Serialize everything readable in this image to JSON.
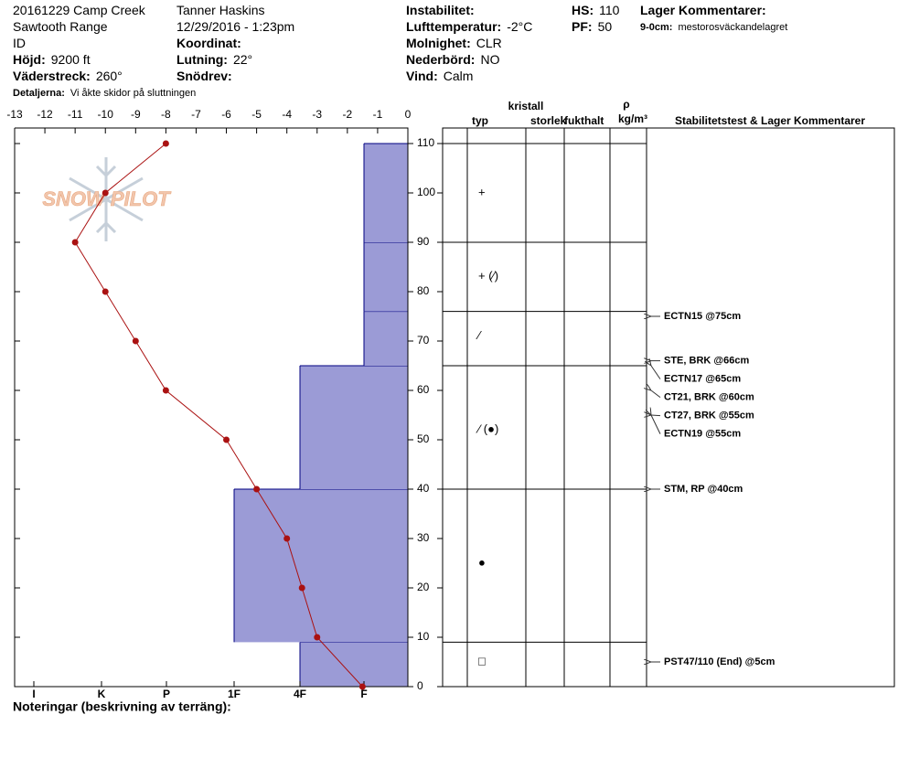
{
  "header": {
    "columns": [
      [
        {
          "value": "20161229 Camp Creek"
        },
        {
          "value": "Sawtooth Range"
        },
        {
          "value": "ID"
        },
        {
          "label": "Höjd:",
          "value": "9200 ft"
        },
        {
          "label": "Väderstreck:",
          "value": "260°"
        },
        {
          "label": "Detaljerna:",
          "value": "Vi åkte skidor på sluttningen"
        }
      ],
      [
        {
          "value": "Tanner Haskins"
        },
        {
          "value": "12/29/2016 - 1:23pm"
        },
        {
          "label": "Koordinat:"
        },
        {
          "label": "Lutning:",
          "value": "22°"
        },
        {
          "label": "Snödrev:"
        }
      ],
      [
        {
          "label": "Instabilitet:"
        },
        {
          "label": "Lufttemperatur:",
          "value": "-2°C"
        },
        {
          "label": "Molnighet:",
          "value": "CLR"
        },
        {
          "label": "Nederbörd:",
          "value": "NO"
        },
        {
          "label": "Vind:",
          "value": "Calm"
        }
      ],
      [
        {
          "label": "HS:",
          "value": "110"
        },
        {
          "label": "PF:",
          "value": "50"
        }
      ],
      [
        {
          "label": "Lager Kommentarer:"
        },
        {
          "label": "9-0cm:",
          "value": "mestorosväckandelagret"
        }
      ]
    ]
  },
  "chart_data": {
    "type": "snow-profile",
    "logo": "SNOW PILOT",
    "xlim": [
      -13,
      0
    ],
    "xticks": [
      -13,
      -12,
      -11,
      -10,
      -9,
      -8,
      -7,
      -6,
      -5,
      -4,
      -3,
      -2,
      -1,
      0
    ],
    "ylim": [
      0,
      110
    ],
    "yticks": [
      0,
      10,
      20,
      30,
      40,
      50,
      60,
      70,
      80,
      90,
      100,
      110
    ],
    "hardness_categories": [
      "I",
      "K",
      "P",
      "1F",
      "4F",
      "F"
    ],
    "temperature": {
      "color": "#aa1111",
      "depths": [
        110,
        100,
        90,
        80,
        70,
        60,
        50,
        40,
        30,
        20,
        10,
        0
      ],
      "values": [
        -8,
        -10,
        -11,
        -10,
        -9,
        -8,
        -6,
        -5,
        -4,
        -3.5,
        -3,
        -1.5
      ]
    },
    "layers": {
      "color": "#9b9bd6",
      "items": [
        {
          "bottom": 0,
          "top": 9,
          "hardness": "4F"
        },
        {
          "bottom": 9,
          "top": 40,
          "hardness": "1F"
        },
        {
          "bottom": 40,
          "top": 65,
          "hardness": "4F"
        },
        {
          "bottom": 65,
          "top": 76,
          "hardness": "F"
        },
        {
          "bottom": 76,
          "top": 90,
          "hardness": "F"
        },
        {
          "bottom": 90,
          "top": 110,
          "hardness": "F"
        }
      ]
    },
    "column_headers": {
      "type": "typ",
      "crystal": "kristall",
      "size": "storlek",
      "moisture": "fukthalt",
      "rho": "ρ",
      "density_unit": "kg/m³",
      "tests": "Stabilitetstest & Lager Kommentarer"
    },
    "crystals": [
      {
        "depth": 100,
        "symbol": "+"
      },
      {
        "depth": 83,
        "symbol": "+ (⁄)"
      },
      {
        "depth": 71,
        "symbol": "⁄"
      },
      {
        "depth": 52,
        "symbol": "⁄ (●)"
      },
      {
        "depth": 25,
        "symbol": "●"
      },
      {
        "depth": 5,
        "symbol": "□"
      }
    ],
    "tests": [
      {
        "depth": 75,
        "label": "ECTN15 @75cm"
      },
      {
        "depth": 66,
        "label": "STE, BRK @66cm"
      },
      {
        "depth": 65,
        "label": "ECTN17 @65cm"
      },
      {
        "depth": 60,
        "label": "CT21, BRK @60cm"
      },
      {
        "depth": 55,
        "label": "CT27, BRK @55cm"
      },
      {
        "depth": 55,
        "label": "ECTN19 @55cm"
      },
      {
        "depth": 40,
        "label": "STM, RP @40cm"
      },
      {
        "depth": 5,
        "label": "PST47/110 (End) @5cm"
      }
    ],
    "notes_label": "Noteringar (beskrivning av terräng):"
  }
}
